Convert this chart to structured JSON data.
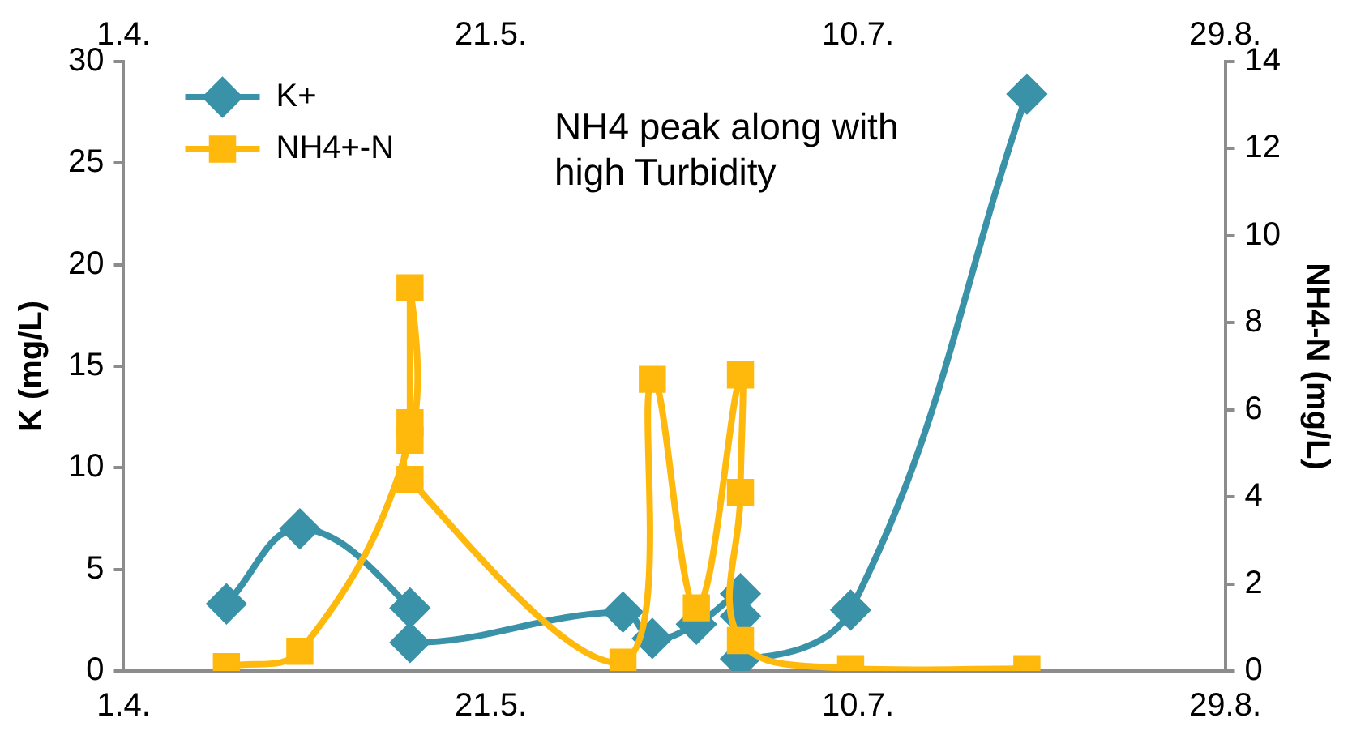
{
  "chart_data": {
    "type": "line",
    "ylabel": "K (mg/L)",
    "y2label": "NH4-N (mg/L)",
    "annotations": [
      "NH4 peak along with high Turbidity"
    ],
    "xlim": [
      "--04-01",
      "--08-29"
    ],
    "xticks": [
      {
        "value": "--04-01",
        "label": "1.4."
      },
      {
        "value": "--05-21",
        "label": "21.5."
      },
      {
        "value": "--07-10",
        "label": "10.7."
      },
      {
        "value": "--08-29",
        "label": "29.8."
      }
    ],
    "x2lim": [
      "--04-01",
      "--08-29"
    ],
    "x2ticks": [
      {
        "value": "--04-01",
        "label": "1.4."
      },
      {
        "value": "--05-21",
        "label": "21.5."
      },
      {
        "value": "--07-10",
        "label": "10.7."
      },
      {
        "value": "--08-29",
        "label": "29.8."
      }
    ],
    "ylim": [
      0,
      30
    ],
    "yticks": [
      0,
      5,
      10,
      15,
      20,
      25,
      30
    ],
    "y2lim": [
      0,
      14
    ],
    "y2ticks": [
      0,
      2,
      4,
      6,
      8,
      10,
      12,
      14
    ],
    "legend": "top left",
    "grid": false,
    "series": [
      {
        "name": "K+",
        "color": "#3a92a8",
        "marker": "diamond",
        "x": [
          "--04-15",
          "--04-25",
          "--05-10",
          "--05-10",
          "--06-08",
          "--06-12",
          "--06-18",
          "--06-24",
          "--06-24",
          "--06-24",
          "--07-09",
          "--08-02"
        ],
        "values": [
          3.3,
          7.0,
          3.1,
          1.4,
          2.9,
          1.6,
          2.3,
          3.8,
          2.7,
          0.6,
          3.0,
          28.4
        ]
      },
      {
        "name": "NH4+-N",
        "color": "#ffb80c",
        "marker": "square",
        "axis": "y2",
        "x": [
          "--04-15",
          "--04-25",
          "--05-10",
          "--05-10",
          "--05-10",
          "--05-10",
          "--06-08",
          "--06-12",
          "--06-18",
          "--06-24",
          "--06-24",
          "--06-24",
          "--07-09",
          "--08-02"
        ],
        "values": [
          0.1,
          0.45,
          5.3,
          8.8,
          5.7,
          4.4,
          0.2,
          6.7,
          1.45,
          6.8,
          4.1,
          0.7,
          0.05,
          0.05
        ]
      }
    ]
  }
}
